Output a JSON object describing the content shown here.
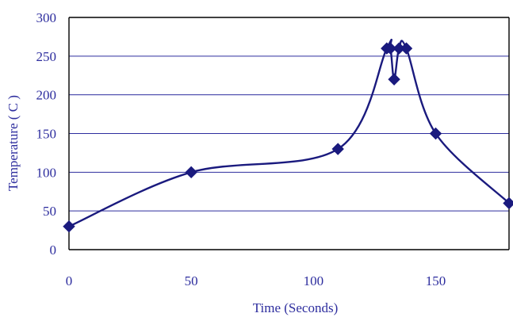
{
  "chart_data": {
    "type": "line",
    "title": "",
    "xlabel": "Time (Seconds)",
    "ylabel": "Temperature ( C )",
    "xlim": [
      0,
      180
    ],
    "ylim": [
      0,
      300
    ],
    "x_ticks": [
      "0",
      "50",
      "100",
      "150"
    ],
    "y_ticks": [
      "0",
      "50",
      "100",
      "150",
      "200",
      "250",
      "300"
    ],
    "grid": "horizontal",
    "legend": "none",
    "series": [
      {
        "color": "#1a1a7e",
        "marker": "diamond",
        "points": [
          {
            "x": 0,
            "y": 30
          },
          {
            "x": 50,
            "y": 100
          },
          {
            "x": 110,
            "y": 130
          },
          {
            "x": 130,
            "y": 260
          },
          {
            "x": 131.5,
            "y": 260
          },
          {
            "x": 133,
            "y": 220
          },
          {
            "x": 135,
            "y": 260
          },
          {
            "x": 138,
            "y": 260
          },
          {
            "x": 150,
            "y": 150
          },
          {
            "x": 180,
            "y": 60
          }
        ]
      }
    ]
  }
}
